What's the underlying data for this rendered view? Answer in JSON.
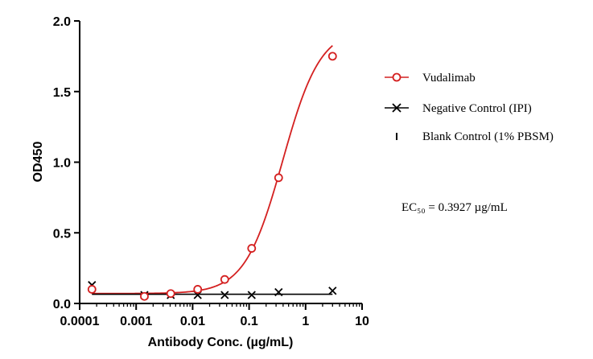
{
  "chart_data": {
    "type": "line",
    "title": "",
    "xlabel": "Antibody Conc. (µg/mL)",
    "ylabel": "OD450",
    "xscale": "log",
    "xlim": [
      0.0001,
      10
    ],
    "ylim": [
      0,
      2.0
    ],
    "x_ticks": [
      0.0001,
      0.001,
      0.01,
      0.1,
      1,
      10
    ],
    "x_tick_labels": [
      "0.0001",
      "0.001",
      "0.01",
      "0.1",
      "1",
      "10"
    ],
    "y_ticks": [
      0,
      0.5,
      1.0,
      1.5,
      2.0
    ],
    "y_tick_labels": [
      "0.0",
      "0.5",
      "1.0",
      "1.5",
      "2.0"
    ],
    "grid": false,
    "legend_position": "right",
    "series": [
      {
        "name": "Vudalimab",
        "marker": "circle",
        "color": "#d42020",
        "fit": "4PL",
        "fit_params": {
          "bottom": 0.07,
          "top": 1.95,
          "ec50": 0.3927,
          "hill": 1.3
        },
        "x": [
          0.000165,
          0.0014,
          0.0041,
          0.0123,
          0.037,
          0.111,
          0.333,
          3.0
        ],
        "y": [
          0.1,
          0.05,
          0.07,
          0.1,
          0.17,
          0.39,
          0.89,
          1.75
        ]
      },
      {
        "name": "Negative Control (IPI)",
        "marker": "x",
        "color": "#000000",
        "fit": "flat",
        "fit_y": 0.065,
        "x": [
          0.000165,
          0.0014,
          0.0041,
          0.0123,
          0.037,
          0.111,
          0.333,
          3.0
        ],
        "y": [
          0.13,
          0.06,
          0.06,
          0.06,
          0.06,
          0.06,
          0.08,
          0.09
        ]
      },
      {
        "name": "Blank Control (1% PBSM)",
        "marker": "tick",
        "color": "#000000",
        "x": [],
        "y": []
      }
    ],
    "annotation": {
      "ec50_label": "EC₅₀ = 0.3927 µg/mL"
    }
  }
}
